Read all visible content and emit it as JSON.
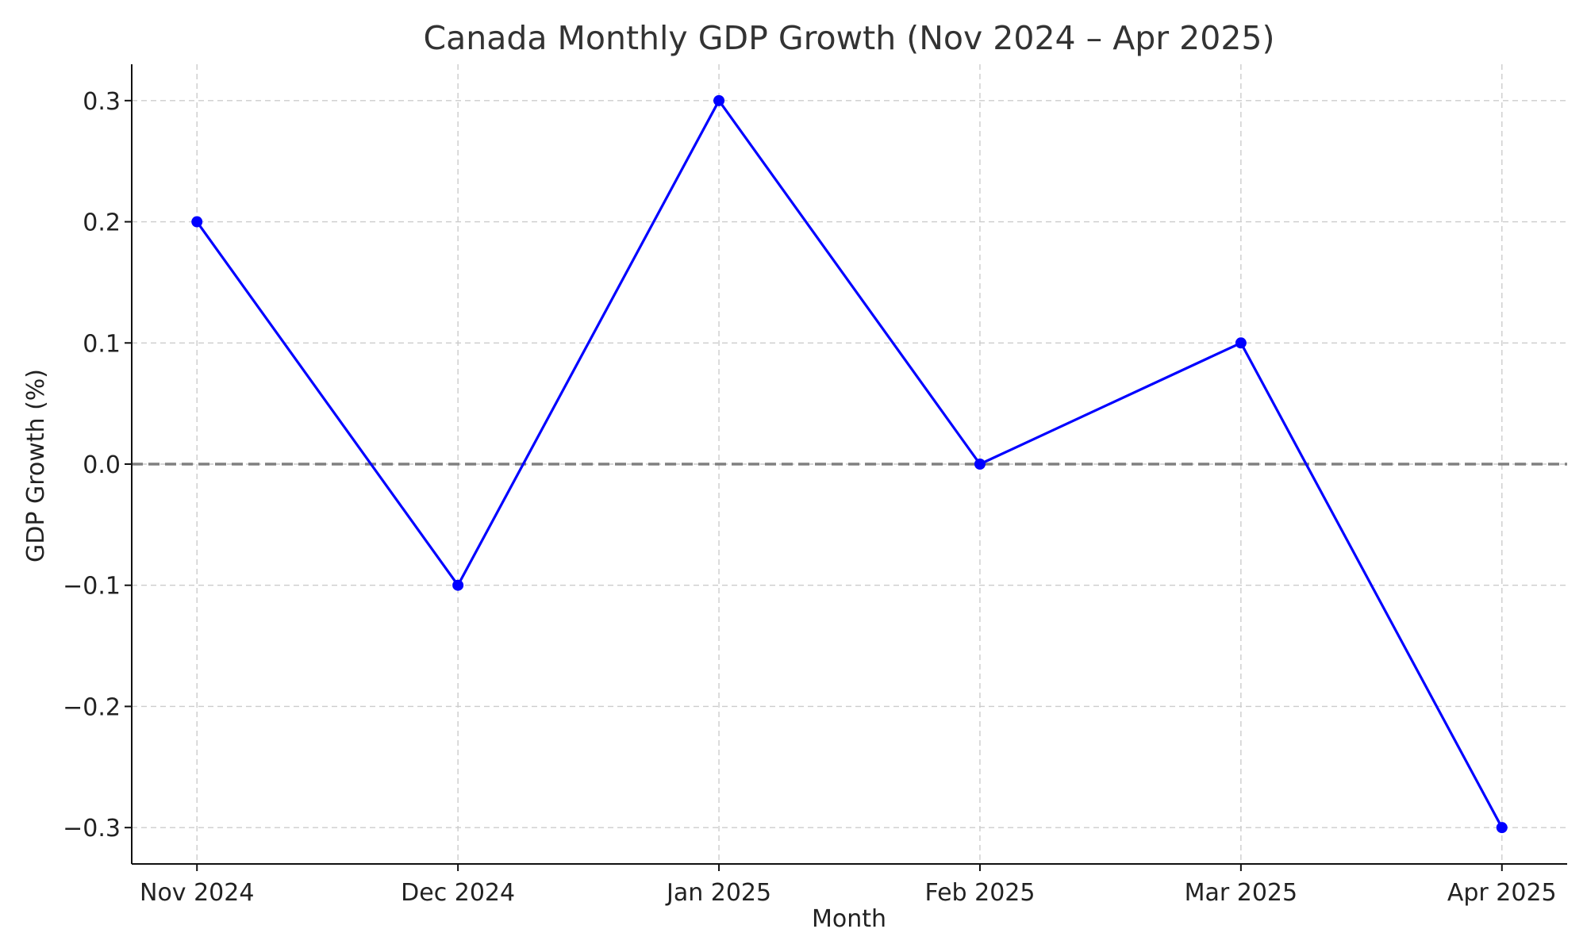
{
  "chart_data": {
    "type": "line",
    "title": "Canada Monthly GDP Growth (Nov 2024 – Apr 2025)",
    "xlabel": "Month",
    "ylabel": "GDP Growth (%)",
    "categories": [
      "Nov 2024",
      "Dec 2024",
      "Jan 2025",
      "Feb 2025",
      "Mar 2025",
      "Apr 2025"
    ],
    "x_positions_months": [
      0,
      1,
      2,
      3,
      4,
      5
    ],
    "x_axis_kind": "date",
    "values": [
      0.2,
      -0.1,
      0.3,
      0.0,
      0.1,
      -0.3
    ],
    "ylim": [
      -0.33,
      0.33
    ],
    "y_ticks": [
      -0.3,
      -0.2,
      -0.1,
      0.0,
      0.1,
      0.2,
      0.3
    ],
    "y_tick_labels": [
      "−0.3",
      "−0.2",
      "−0.1",
      "0.0",
      "0.1",
      "0.2",
      "0.3"
    ],
    "grid": true,
    "reference_line": {
      "y": 0,
      "style": "dashed",
      "color": "#808080"
    },
    "series_color": "#0000ff",
    "marker": "circle"
  }
}
